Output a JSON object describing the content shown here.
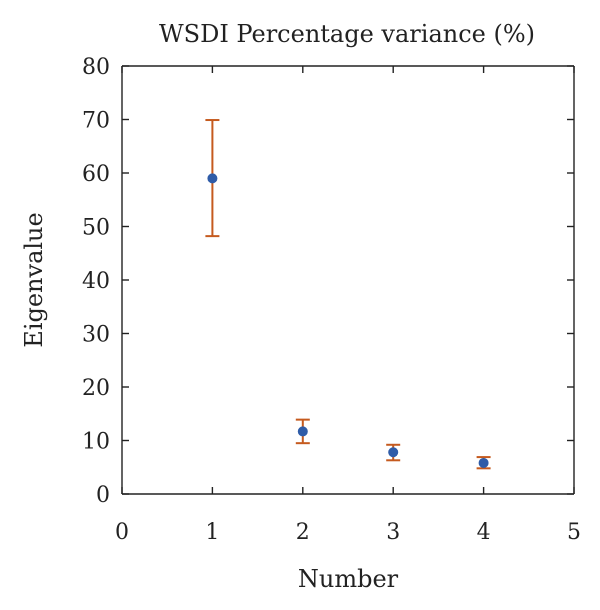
{
  "chart_data": {
    "type": "scatter",
    "title": "WSDI Percentage variance (%)",
    "xlabel": "Number",
    "ylabel": "Eigenvalue",
    "xlim": [
      0,
      5
    ],
    "ylim": [
      0,
      80
    ],
    "xticks": [
      "0",
      "1",
      "2",
      "3",
      "4",
      "5"
    ],
    "yticks": [
      "0",
      "10",
      "20",
      "30",
      "40",
      "50",
      "60",
      "70",
      "80"
    ],
    "grid": false,
    "series": [
      {
        "points": [
          {
            "x": 1,
            "y": 59.0,
            "err_low": 48.2,
            "err_high": 69.9
          },
          {
            "x": 2,
            "y": 11.7,
            "err_low": 9.5,
            "err_high": 13.9
          },
          {
            "x": 3,
            "y": 7.8,
            "err_low": 6.3,
            "err_high": 9.2
          },
          {
            "x": 4,
            "y": 5.8,
            "err_low": 4.8,
            "err_high": 6.9
          }
        ],
        "marker_color": "#2f5ca8",
        "errorbar_color": "#c55a1e"
      }
    ]
  }
}
